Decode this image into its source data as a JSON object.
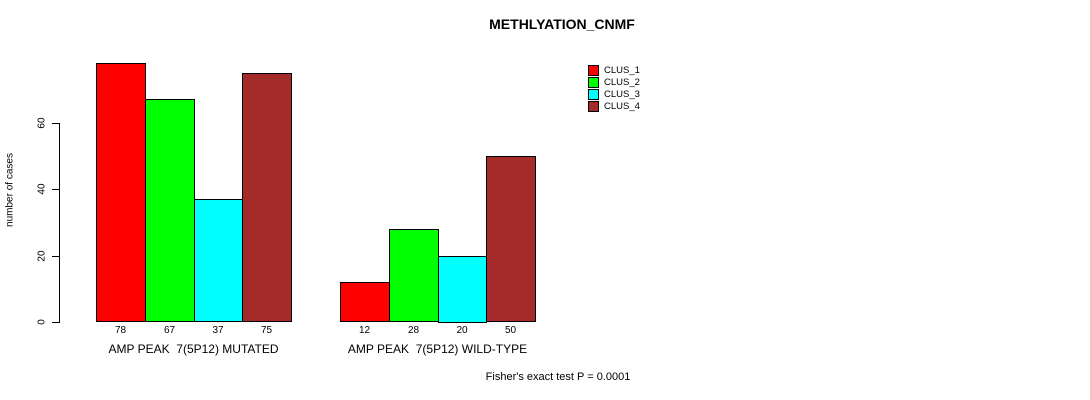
{
  "chart_data": {
    "type": "bar",
    "title": "METHLYATION_CNMF",
    "xlabel": "",
    "ylabel": "number of cases",
    "ylim": [
      0,
      80
    ],
    "yticks": [
      0,
      20,
      40,
      60
    ],
    "grid": false,
    "legend_position": "top-right-outside",
    "categories": [
      "AMP PEAK  7(5P12) MUTATED",
      "AMP PEAK  7(5P12) WILD-TYPE"
    ],
    "series": [
      {
        "name": "CLUS_1",
        "color": "#ff0000",
        "values": [
          78,
          12
        ]
      },
      {
        "name": "CLUS_2",
        "color": "#00ff00",
        "values": [
          67,
          28
        ]
      },
      {
        "name": "CLUS_3",
        "color": "#00ffff",
        "values": [
          37,
          20
        ]
      },
      {
        "name": "CLUS_4",
        "color": "#a52a2a",
        "values": [
          75,
          50
        ]
      }
    ],
    "bar_value_labels": [
      [
        "78",
        "67",
        "37",
        "75"
      ],
      [
        "12",
        "28",
        "20",
        "50"
      ]
    ],
    "annotation": "Fisher's exact test P = 0.0001"
  }
}
